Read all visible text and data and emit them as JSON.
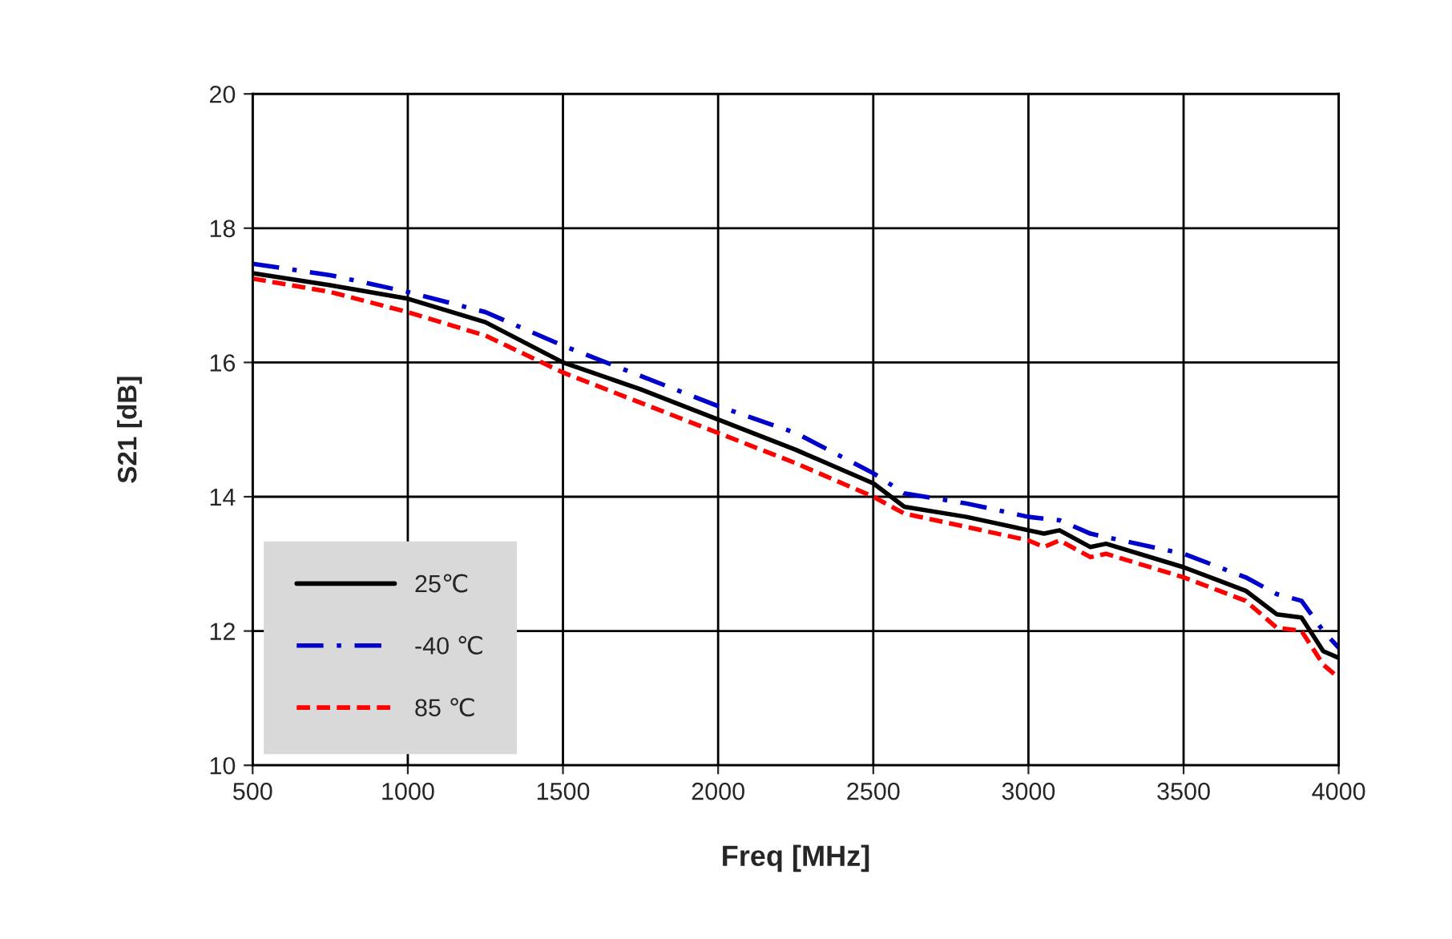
{
  "chart_data": {
    "type": "line",
    "xlabel": "Freq [MHz]",
    "ylabel": "S21 [dB]",
    "xlim": [
      500,
      4000
    ],
    "xticks": [
      500,
      1000,
      1500,
      2000,
      2500,
      3000,
      3500,
      4000
    ],
    "ylim": [
      10,
      20
    ],
    "yticks": [
      10,
      12,
      14,
      16,
      18,
      20
    ],
    "grid": true,
    "legend": "bottom left",
    "series": [
      {
        "name": "25℃",
        "color": "#000000",
        "line_style": "solid",
        "x": [
          500,
          750,
          1000,
          1250,
          1500,
          1750,
          2000,
          2250,
          2400,
          2500,
          2600,
          2800,
          3000,
          3050,
          3100,
          3200,
          3250,
          3500,
          3700,
          3800,
          3880,
          3950,
          4000
        ],
        "values": [
          17.33,
          17.15,
          16.95,
          16.6,
          16.0,
          15.6,
          15.15,
          14.7,
          14.4,
          14.2,
          13.85,
          13.7,
          13.5,
          13.45,
          13.5,
          13.25,
          13.3,
          12.95,
          12.6,
          12.25,
          12.2,
          11.7,
          11.6
        ]
      },
      {
        "name": "-40 ℃",
        "color": "#0000cc",
        "line_style": "dashdot",
        "x": [
          500,
          750,
          1000,
          1250,
          1500,
          1750,
          2000,
          2250,
          2500,
          2600,
          2800,
          3000,
          3100,
          3200,
          3500,
          3700,
          3800,
          3880,
          3950,
          4000
        ],
        "values": [
          17.47,
          17.3,
          17.05,
          16.75,
          16.25,
          15.8,
          15.35,
          14.95,
          14.35,
          14.05,
          13.9,
          13.7,
          13.65,
          13.45,
          13.15,
          12.8,
          12.55,
          12.45,
          12.0,
          11.75
        ]
      },
      {
        "name": "85 ℃",
        "color": "#ff0000",
        "line_style": "dashed",
        "x": [
          500,
          750,
          1000,
          1250,
          1500,
          1750,
          2000,
          2250,
          2400,
          2500,
          2600,
          2800,
          3000,
          3050,
          3100,
          3200,
          3250,
          3500,
          3700,
          3800,
          3880,
          3950,
          4000
        ],
        "values": [
          17.25,
          17.05,
          16.75,
          16.4,
          15.85,
          15.4,
          14.95,
          14.5,
          14.2,
          14.0,
          13.75,
          13.55,
          13.35,
          13.25,
          13.35,
          13.1,
          13.15,
          12.8,
          12.45,
          12.05,
          12.0,
          11.5,
          11.3
        ]
      }
    ]
  }
}
